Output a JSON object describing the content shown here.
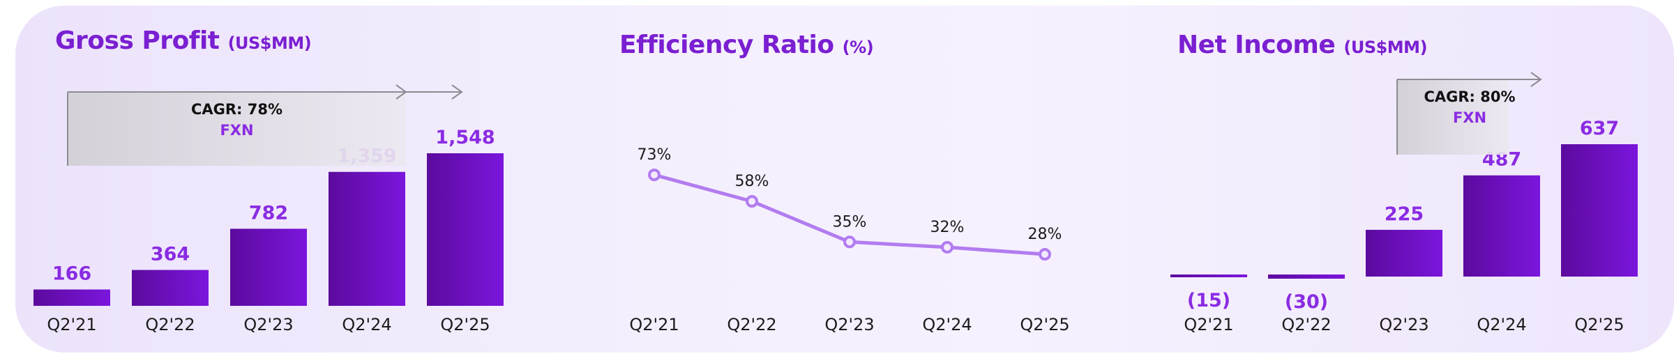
{
  "colors": {
    "bar_top": "#7b16dd",
    "bar_bottom": "#5c0a9e",
    "accent": "#8a2be2",
    "line": "#b27cf0"
  },
  "chart_data": [
    {
      "type": "bar",
      "title": "Gross Profit",
      "unit": "(US$MM)",
      "categories": [
        "Q2'21",
        "Q2'22",
        "Q2'23",
        "Q2'24",
        "Q2'25"
      ],
      "values": [
        166,
        364,
        782,
        1359,
        1548
      ],
      "value_labels": [
        "166",
        "364",
        "782",
        "1,359",
        "1,548"
      ],
      "ylim": [
        0,
        1548
      ],
      "annotation": {
        "text": "CAGR: 78%",
        "subtext": "FXN"
      }
    },
    {
      "type": "line",
      "title": "Efficiency Ratio",
      "unit": "(%)",
      "categories": [
        "Q2'21",
        "Q2'22",
        "Q2'23",
        "Q2'24",
        "Q2'25"
      ],
      "values": [
        73,
        58,
        35,
        32,
        28
      ],
      "value_labels": [
        "73%",
        "58%",
        "35%",
        "32%",
        "28%"
      ],
      "ylim": [
        28,
        73
      ]
    },
    {
      "type": "bar",
      "title": "Net Income",
      "unit": "(US$MM)",
      "categories": [
        "Q2'21",
        "Q2'22",
        "Q2'23",
        "Q2'24",
        "Q2'25"
      ],
      "values": [
        -15,
        -30,
        225,
        487,
        637
      ],
      "value_labels": [
        "(15)",
        "(30)",
        "225",
        "487",
        "637"
      ],
      "ylim": [
        -30,
        637
      ],
      "annotation": {
        "text": "CAGR: 80%",
        "subtext": "FXN"
      }
    }
  ]
}
